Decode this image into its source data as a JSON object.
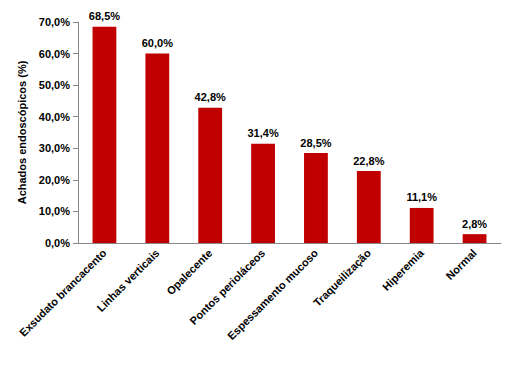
{
  "chart_data": {
    "type": "bar",
    "y_label": "Achados endoscópicos (%)",
    "categories": [
      "Exsudato brancacento",
      "Linhas verticais",
      "Opalecente",
      "Pontos perioláceos",
      "Espessamento mucoso",
      "Traqueilização",
      "Hiperemia",
      "Normal"
    ],
    "values": [
      68.5,
      60.0,
      42.8,
      31.4,
      28.5,
      22.8,
      11.1,
      2.8
    ],
    "value_labels": [
      "68,5%",
      "60,0%",
      "42,8%",
      "31,4%",
      "28,5%",
      "22,8%",
      "11,1%",
      "2,8%"
    ],
    "color": "#c00000",
    "ylim": [
      0,
      70
    ],
    "yticks": [
      {
        "value": 0,
        "label": "0,0%"
      },
      {
        "value": 10,
        "label": "10,0%"
      },
      {
        "value": 20,
        "label": "20,0%"
      },
      {
        "value": 30,
        "label": "30,0%"
      },
      {
        "value": 40,
        "label": "40,0%"
      },
      {
        "value": 50,
        "label": "50,0%"
      },
      {
        "value": 60,
        "label": "60,0%"
      },
      {
        "value": 70,
        "label": "70,0%"
      }
    ],
    "grid": false,
    "data_labels": true
  }
}
